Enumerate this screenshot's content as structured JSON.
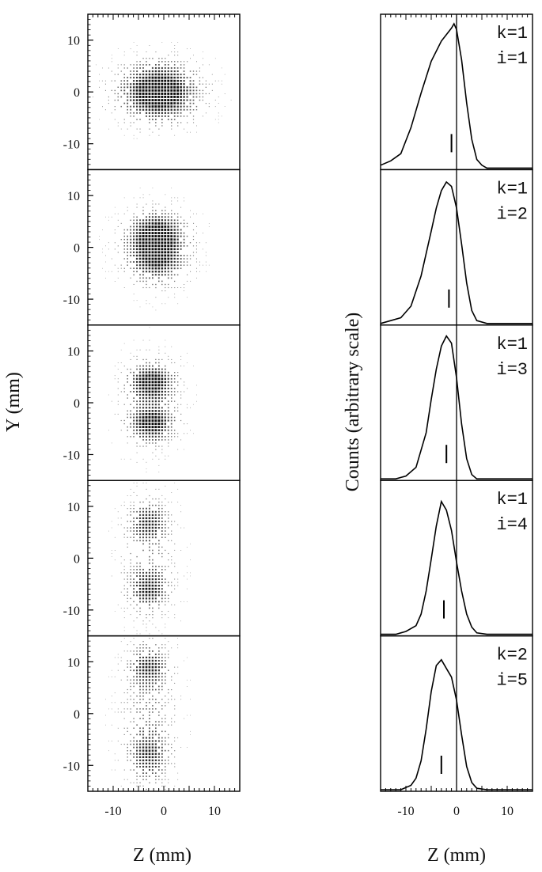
{
  "chart_data": [
    {
      "type": "heatmap",
      "description_of_panels": "five stacked 2D spot-intensity images",
      "xlabel": "Z (mm)",
      "ylabel": "Y (mm)",
      "xlim": [
        -15,
        15
      ],
      "ylim": [
        -15,
        15
      ],
      "xticks": [
        -10,
        0,
        10
      ],
      "yticks": [
        10,
        0,
        -10
      ],
      "panels": [
        {
          "i": 1,
          "blobs": [
            {
              "z": -1,
              "y": 0,
              "sz": 4.5,
              "sy": 3.5,
              "w": 1.0
            },
            {
              "z": -1,
              "y": 0,
              "sz": 7,
              "sy": 4.5,
              "w": 0.35
            }
          ]
        },
        {
          "i": 2,
          "blobs": [
            {
              "z": -1.5,
              "y": 3,
              "sz": 3.5,
              "sy": 2.5,
              "w": 0.8
            },
            {
              "z": -1.5,
              "y": -2,
              "sz": 3.5,
              "sy": 3,
              "w": 0.8
            },
            {
              "z": -1.5,
              "y": 0,
              "sz": 5.5,
              "sy": 6,
              "w": 0.3
            }
          ]
        },
        {
          "i": 3,
          "blobs": [
            {
              "z": -2.5,
              "y": 4,
              "sz": 2.8,
              "sy": 2.2,
              "w": 0.9
            },
            {
              "z": -2.5,
              "y": -4,
              "sz": 2.8,
              "sy": 2.2,
              "w": 0.85
            },
            {
              "z": -2.5,
              "y": 0,
              "sz": 4.5,
              "sy": 7,
              "w": 0.35
            }
          ]
        },
        {
          "i": 4,
          "blobs": [
            {
              "z": -3,
              "y": 7,
              "sz": 2.5,
              "sy": 2.5,
              "w": 0.6
            },
            {
              "z": -3,
              "y": -6,
              "sz": 2.5,
              "sy": 2.5,
              "w": 0.65
            },
            {
              "z": -3,
              "y": 0,
              "sz": 4,
              "sy": 9,
              "w": 0.35
            }
          ]
        },
        {
          "i": 5,
          "blobs": [
            {
              "z": -3,
              "y": 9,
              "sz": 2.5,
              "sy": 2.5,
              "w": 0.6
            },
            {
              "z": -3,
              "y": -8,
              "sz": 2.5,
              "sy": 3,
              "w": 0.55
            },
            {
              "z": -3,
              "y": 0,
              "sz": 4,
              "sy": 11,
              "w": 0.4
            }
          ]
        }
      ]
    },
    {
      "type": "line",
      "xlabel": "Z (mm)",
      "ylabel": "Counts (arbitrary scale)",
      "xlim": [
        -15,
        15
      ],
      "xticks": [
        -10,
        0,
        10
      ],
      "vertical_reference_line": 0,
      "panels": [
        {
          "label_k": "k=1",
          "label_i": "i=1",
          "marker_z": -1,
          "z": [
            -15,
            -13,
            -11,
            -9,
            -7,
            -5,
            -3,
            -1,
            -0.5,
            0,
            1,
            2,
            3,
            4,
            5,
            6,
            8,
            10,
            15
          ],
          "counts": [
            0.02,
            0.05,
            0.1,
            0.28,
            0.52,
            0.74,
            0.88,
            0.97,
            1.0,
            0.96,
            0.75,
            0.45,
            0.2,
            0.06,
            0.02,
            0.0,
            0.0,
            0.0,
            0.0
          ]
        },
        {
          "label_k": "k=1",
          "label_i": "i=2",
          "marker_z": -1.5,
          "z": [
            -15,
            -13,
            -11,
            -9,
            -7,
            -5,
            -4,
            -3,
            -2,
            -1,
            0,
            1,
            2,
            3,
            4,
            6,
            8,
            15
          ],
          "counts": [
            0.0,
            0.02,
            0.04,
            0.12,
            0.33,
            0.64,
            0.8,
            0.92,
            0.98,
            0.95,
            0.8,
            0.55,
            0.28,
            0.09,
            0.02,
            0.0,
            0.0,
            0.0
          ]
        },
        {
          "label_k": "k=1",
          "label_i": "i=3",
          "marker_z": -2,
          "z": [
            -15,
            -12,
            -10,
            -8,
            -6,
            -5,
            -4,
            -3,
            -2,
            -1,
            0,
            1,
            2,
            3,
            4,
            6,
            15
          ],
          "counts": [
            0.0,
            0.0,
            0.02,
            0.08,
            0.32,
            0.55,
            0.76,
            0.92,
            0.99,
            0.94,
            0.7,
            0.38,
            0.14,
            0.03,
            0.0,
            0.0,
            0.0
          ]
        },
        {
          "label_k": "k=1",
          "label_i": "i=4",
          "marker_z": -2.5,
          "z": [
            -15,
            -12,
            -10,
            -8,
            -7,
            -6,
            -5,
            -4,
            -3,
            -2,
            -1,
            0,
            1,
            2,
            3,
            4,
            6,
            15
          ],
          "counts": [
            0.0,
            0.0,
            0.02,
            0.06,
            0.14,
            0.3,
            0.52,
            0.75,
            0.92,
            0.86,
            0.72,
            0.5,
            0.3,
            0.14,
            0.05,
            0.01,
            0.0,
            0.0
          ]
        },
        {
          "label_k": "k=2",
          "label_i": "i=5",
          "marker_z": -3,
          "z": [
            -15,
            -11,
            -9,
            -8,
            -7,
            -6,
            -5,
            -4,
            -3,
            -2,
            -1,
            0,
            1,
            2,
            3,
            4,
            6,
            15
          ],
          "counts": [
            0.0,
            0.0,
            0.03,
            0.08,
            0.2,
            0.42,
            0.68,
            0.86,
            0.9,
            0.84,
            0.78,
            0.62,
            0.38,
            0.16,
            0.05,
            0.01,
            0.0,
            0.0
          ]
        }
      ]
    }
  ]
}
